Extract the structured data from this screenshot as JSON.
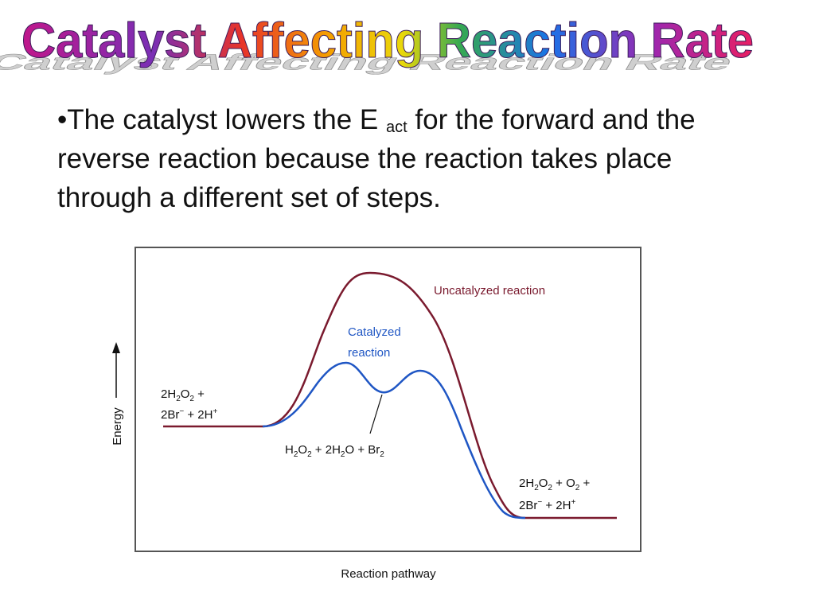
{
  "slide": {
    "title": "Catalyst Affecting Reaction Rate",
    "title_colors": [
      "#c0178b",
      "#7a2fb5",
      "#e8332a",
      "#f5a000",
      "#e9d80a",
      "#34a853",
      "#1a73e8",
      "#9c27b0",
      "#e91e63"
    ],
    "bullet": {
      "marker": "•",
      "text_before": "The catalyst lowers the E ",
      "subscript": "act",
      "text_after": " for the forward and the reverse reaction because the reaction takes place through a different set of steps."
    }
  },
  "diagram": {
    "xlabel": "Reaction pathway",
    "ylabel": "Energy",
    "curves": {
      "uncatalyzed": {
        "label": "Uncatalyzed reaction",
        "color": "#7a1a2e"
      },
      "catalyzed": {
        "label_line1": "Catalyzed",
        "label_line2": "reaction",
        "color": "#1f56c4"
      }
    },
    "reactants": {
      "line1": {
        "a": "2H",
        "a_sub": "2",
        "b": "O",
        "b_sub": "2",
        "c": " +"
      },
      "line2": {
        "a": "2Br",
        "a_sup": "−",
        "b": " + 2H",
        "b_sup": "+"
      }
    },
    "intermediate": {
      "a": "H",
      "a_sub": "2",
      "b": "O",
      "b_sub": "2",
      "c": " + 2H",
      "c_sub": "2",
      "d": "O + Br",
      "d_sub": "2"
    },
    "products": {
      "line1": {
        "a": "2H",
        "a_sub": "2",
        "b": "O",
        "b_sub": "2",
        "c": " + O",
        "c_sub": "2",
        "d": " +"
      },
      "line2": {
        "a": "2Br",
        "a_sup": "−",
        "b": " + 2H",
        "b_sup": "+"
      }
    }
  }
}
